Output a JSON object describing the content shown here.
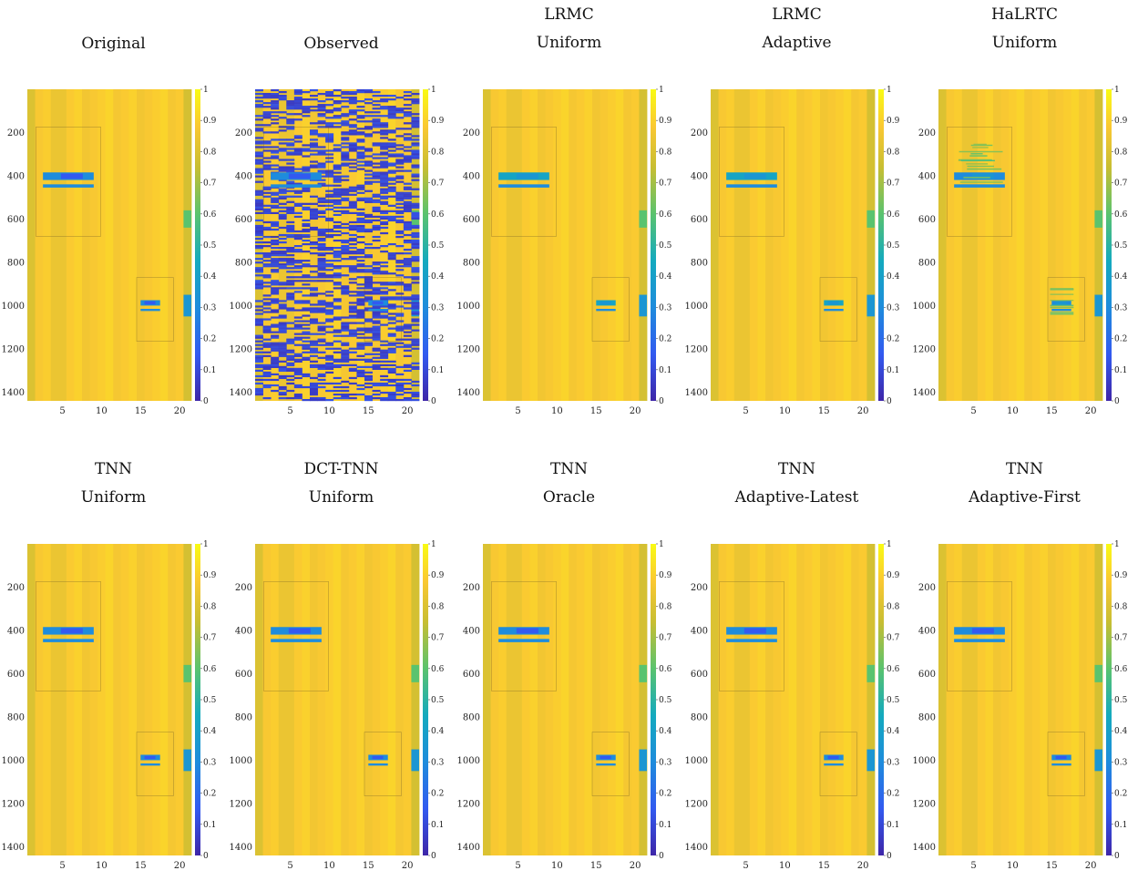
{
  "chart_data": [
    {
      "type": "heatmap",
      "title": [
        "Original"
      ],
      "xticks": [
        "5",
        "10",
        "15",
        "20"
      ],
      "yticks": [
        "200",
        "400",
        "600",
        "800",
        "1000",
        "1200",
        "1400"
      ],
      "colorbar_ticks": [
        "0",
        "0.1",
        "0.2",
        "0.3",
        "0.4",
        "0.5",
        "0.6",
        "0.7",
        "0.8",
        "0.9",
        "1"
      ],
      "xlim": [
        0.5,
        21.5
      ],
      "ylim": [
        1,
        1440
      ],
      "clim": [
        0,
        1
      ],
      "colormap": "parula",
      "variant": "clean"
    },
    {
      "type": "heatmap",
      "title": [
        "Observed"
      ],
      "xticks": [
        "5",
        "10",
        "15",
        "20"
      ],
      "yticks": [
        "200",
        "400",
        "600",
        "800",
        "1000",
        "1200",
        "1400"
      ],
      "colorbar_ticks": [
        "0",
        "0.1",
        "0.2",
        "0.3",
        "0.4",
        "0.5",
        "0.6",
        "0.7",
        "0.8",
        "0.9",
        "1"
      ],
      "xlim": [
        0.5,
        21.5
      ],
      "ylim": [
        1,
        1440
      ],
      "clim": [
        0,
        1
      ],
      "colormap": "parula",
      "variant": "observed"
    },
    {
      "type": "heatmap",
      "title": [
        "LRMC",
        "Uniform"
      ],
      "xticks": [
        "5",
        "10",
        "15",
        "20"
      ],
      "yticks": [
        "200",
        "400",
        "600",
        "800",
        "1000",
        "1200",
        "1400"
      ],
      "colorbar_ticks": [
        "0",
        "0.1",
        "0.2",
        "0.3",
        "0.4",
        "0.5",
        "0.6",
        "0.7",
        "0.8",
        "0.9",
        "1"
      ],
      "xlim": [
        0.5,
        21.5
      ],
      "ylim": [
        1,
        1440
      ],
      "clim": [
        0,
        1
      ],
      "colormap": "parula",
      "variant": "faint"
    },
    {
      "type": "heatmap",
      "title": [
        "LRMC",
        "Adaptive"
      ],
      "xticks": [
        "5",
        "10",
        "15",
        "20"
      ],
      "yticks": [
        "200",
        "400",
        "600",
        "800",
        "1000",
        "1200",
        "1400"
      ],
      "colorbar_ticks": [
        "0",
        "0.1",
        "0.2",
        "0.3",
        "0.4",
        "0.5",
        "0.6",
        "0.7",
        "0.8",
        "0.9",
        "1"
      ],
      "xlim": [
        0.5,
        21.5
      ],
      "ylim": [
        1,
        1440
      ],
      "clim": [
        0,
        1
      ],
      "colormap": "parula",
      "variant": "faint"
    },
    {
      "type": "heatmap",
      "title": [
        "HaLRTC",
        "Uniform"
      ],
      "xticks": [
        "5",
        "10",
        "15",
        "20"
      ],
      "yticks": [
        "200",
        "400",
        "600",
        "800",
        "1000",
        "1200",
        "1400"
      ],
      "colorbar_ticks": [
        "0",
        "0.1",
        "0.2",
        "0.3",
        "0.4",
        "0.5",
        "0.6",
        "0.7",
        "0.8",
        "0.9",
        "1"
      ],
      "xlim": [
        0.5,
        21.5
      ],
      "ylim": [
        1,
        1440
      ],
      "clim": [
        0,
        1
      ],
      "colormap": "parula",
      "variant": "streaky"
    },
    {
      "type": "heatmap",
      "title": [
        "TNN",
        "Uniform"
      ],
      "xticks": [
        "5",
        "10",
        "15",
        "20"
      ],
      "yticks": [
        "200",
        "400",
        "600",
        "800",
        "1000",
        "1200",
        "1400"
      ],
      "colorbar_ticks": [
        "0",
        "0.1",
        "0.2",
        "0.3",
        "0.4",
        "0.5",
        "0.6",
        "0.7",
        "0.8",
        "0.9",
        "1"
      ],
      "xlim": [
        0.5,
        21.5
      ],
      "ylim": [
        1,
        1440
      ],
      "clim": [
        0,
        1
      ],
      "colormap": "parula",
      "variant": "medium"
    },
    {
      "type": "heatmap",
      "title": [
        "DCT-TNN",
        "Uniform"
      ],
      "xticks": [
        "5",
        "10",
        "15",
        "20"
      ],
      "yticks": [
        "200",
        "400",
        "600",
        "800",
        "1000",
        "1200",
        "1400"
      ],
      "colorbar_ticks": [
        "0",
        "0.1",
        "0.2",
        "0.3",
        "0.4",
        "0.5",
        "0.6",
        "0.7",
        "0.8",
        "0.9",
        "1"
      ],
      "xlim": [
        0.5,
        21.5
      ],
      "ylim": [
        1,
        1440
      ],
      "clim": [
        0,
        1
      ],
      "colormap": "parula",
      "variant": "medium"
    },
    {
      "type": "heatmap",
      "title": [
        "TNN",
        "Oracle"
      ],
      "xticks": [
        "5",
        "10",
        "15",
        "20"
      ],
      "yticks": [
        "200",
        "400",
        "600",
        "800",
        "1000",
        "1200",
        "1400"
      ],
      "colorbar_ticks": [
        "0",
        "0.1",
        "0.2",
        "0.3",
        "0.4",
        "0.5",
        "0.6",
        "0.7",
        "0.8",
        "0.9",
        "1"
      ],
      "xlim": [
        0.5,
        21.5
      ],
      "ylim": [
        1,
        1440
      ],
      "clim": [
        0,
        1
      ],
      "colormap": "parula",
      "variant": "clean"
    },
    {
      "type": "heatmap",
      "title": [
        "TNN",
        "Adaptive-Latest"
      ],
      "xticks": [
        "5",
        "10",
        "15",
        "20"
      ],
      "yticks": [
        "200",
        "400",
        "600",
        "800",
        "1000",
        "1200",
        "1400"
      ],
      "colorbar_ticks": [
        "0",
        "0.1",
        "0.2",
        "0.3",
        "0.4",
        "0.5",
        "0.6",
        "0.7",
        "0.8",
        "0.9",
        "1"
      ],
      "xlim": [
        0.5,
        21.5
      ],
      "ylim": [
        1,
        1440
      ],
      "clim": [
        0,
        1
      ],
      "colormap": "parula",
      "variant": "clean"
    },
    {
      "type": "heatmap",
      "title": [
        "TNN",
        "Adaptive-First"
      ],
      "xticks": [
        "5",
        "10",
        "15",
        "20"
      ],
      "yticks": [
        "200",
        "400",
        "600",
        "800",
        "1000",
        "1200",
        "1400"
      ],
      "colorbar_ticks": [
        "0",
        "0.1",
        "0.2",
        "0.3",
        "0.4",
        "0.5",
        "0.6",
        "0.7",
        "0.8",
        "0.9",
        "1"
      ],
      "xlim": [
        0.5,
        21.5
      ],
      "ylim": [
        1,
        1440
      ],
      "clim": [
        0,
        1
      ],
      "colormap": "parula",
      "variant": "clean"
    }
  ]
}
